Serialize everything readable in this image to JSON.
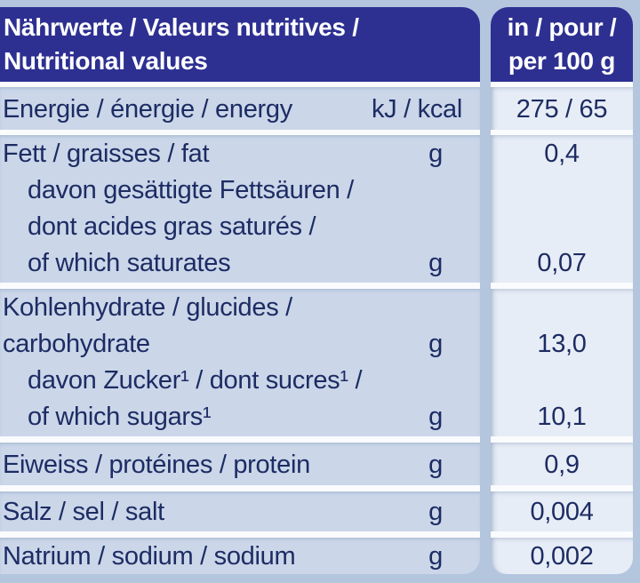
{
  "header": {
    "title_lines": [
      "Nährwerte / Valeurs nutritives /",
      "Nutritional values"
    ],
    "amount_lines": [
      "in / pour /",
      "per 100 g"
    ]
  },
  "colors": {
    "header_background": "#2d3091",
    "label_cell_background": "#cbd6e9",
    "value_cell_background": "#e7edf6",
    "page_background": "#b4c5de",
    "text": "#1d2c63",
    "header_text": "#ffffff"
  },
  "rows": [
    {
      "name": "energy",
      "lines": [
        {
          "text": "Energie / énergie / energy",
          "unit": "kJ / kcal"
        }
      ],
      "values": [
        "275 / 65"
      ]
    },
    {
      "name": "fat",
      "lines": [
        {
          "text": "Fett / graisses / fat",
          "unit": "g"
        },
        {
          "text": "davon gesättigte Fettsäuren /"
        },
        {
          "text": "dont acides gras saturés /"
        },
        {
          "text": "of which saturates",
          "unit": "g"
        }
      ],
      "values": [
        "0,4",
        "",
        "",
        "0,07"
      ]
    },
    {
      "name": "carbohydrate",
      "lines": [
        {
          "text": "Kohlenhydrate / glucides /"
        },
        {
          "text": "carbohydrate",
          "unit": "g"
        },
        {
          "text": "davon Zucker¹ / dont sucres¹ /"
        },
        {
          "text": "of which sugars¹",
          "unit": "g"
        }
      ],
      "values": [
        "",
        "13,0",
        "",
        "10,1"
      ]
    },
    {
      "name": "protein",
      "lines": [
        {
          "text": "Eiweiss / protéines / protein",
          "unit": "g"
        }
      ],
      "values": [
        "0,9"
      ]
    },
    {
      "name": "salt",
      "lines": [
        {
          "text": "Salz / sel / salt",
          "unit": "g"
        }
      ],
      "values": [
        "0,004"
      ]
    },
    {
      "name": "sodium",
      "lines": [
        {
          "text": "Natrium / sodium / sodium",
          "unit": "g"
        }
      ],
      "values": [
        "0,002"
      ]
    }
  ]
}
